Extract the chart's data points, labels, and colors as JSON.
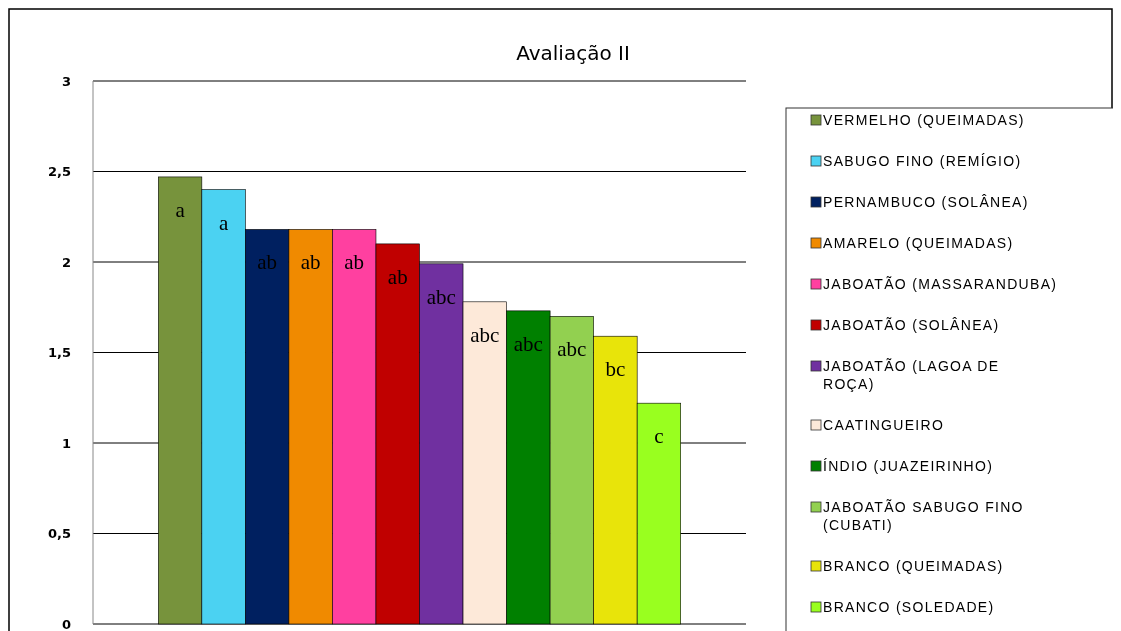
{
  "chart_data": {
    "type": "bar",
    "title": "Avaliação II",
    "categories": [
      null
    ],
    "ylim": [
      0,
      3
    ],
    "yticks": [
      0,
      {
        "value": 0.5,
        "label": "0,5"
      },
      1,
      {
        "value": 1.5,
        "label": "1,5"
      },
      2,
      {
        "value": 2.5,
        "label": "2,5"
      },
      3
    ],
    "grid": "y",
    "legend": "right",
    "series": [
      {
        "name": "VERMELHO (QUEIMADAS)",
        "color": "#77933c",
        "values": [
          2.47
        ],
        "value_labels": [
          "a"
        ]
      },
      {
        "name": "SABUGO FINO (REMÍGIO)",
        "color": "#4bd2f2",
        "values": [
          2.4
        ],
        "value_labels": [
          "a"
        ]
      },
      {
        "name": "PERNAMBUCO (SOLÂNEA)",
        "color": "#002060",
        "values": [
          2.18
        ],
        "value_labels": [
          "ab"
        ]
      },
      {
        "name": "AMARELO (QUEIMADAS)",
        "color": "#f08a00",
        "values": [
          2.18
        ],
        "value_labels": [
          "ab"
        ]
      },
      {
        "name": "JABOATÃO (MASSARANDUBA)",
        "color": "#ff40a0",
        "values": [
          2.18
        ],
        "value_labels": [
          "ab"
        ]
      },
      {
        "name": "JABOATÃO (SOLÂNEA)",
        "color": "#c00000",
        "values": [
          2.1
        ],
        "value_labels": [
          "ab"
        ]
      },
      {
        "name": "JABOATÃO (LAGOA DE ROÇA)",
        "color": "#7030a0",
        "values": [
          1.99
        ],
        "value_labels": [
          "abc"
        ]
      },
      {
        "name": "CAATINGUEIRO",
        "color": "#fde9d9",
        "values": [
          1.78
        ],
        "value_labels": [
          "abc"
        ]
      },
      {
        "name": "ÍNDIO (JUAZEIRINHO)",
        "color": "#008000",
        "values": [
          1.73
        ],
        "value_labels": [
          "abc"
        ]
      },
      {
        "name": "JABOATÃO SABUGO FINO (CUBATI)",
        "color": "#92d050",
        "values": [
          1.7
        ],
        "value_labels": [
          "abc"
        ]
      },
      {
        "name": "BRANCO (QUEIMADAS)",
        "color": "#e8e40a",
        "values": [
          1.59
        ],
        "value_labels": [
          "bc"
        ]
      },
      {
        "name": "BRANCO (SOLEDADE)",
        "color": "#99ff1f",
        "values": [
          1.22
        ],
        "value_labels": [
          "c"
        ]
      }
    ]
  }
}
